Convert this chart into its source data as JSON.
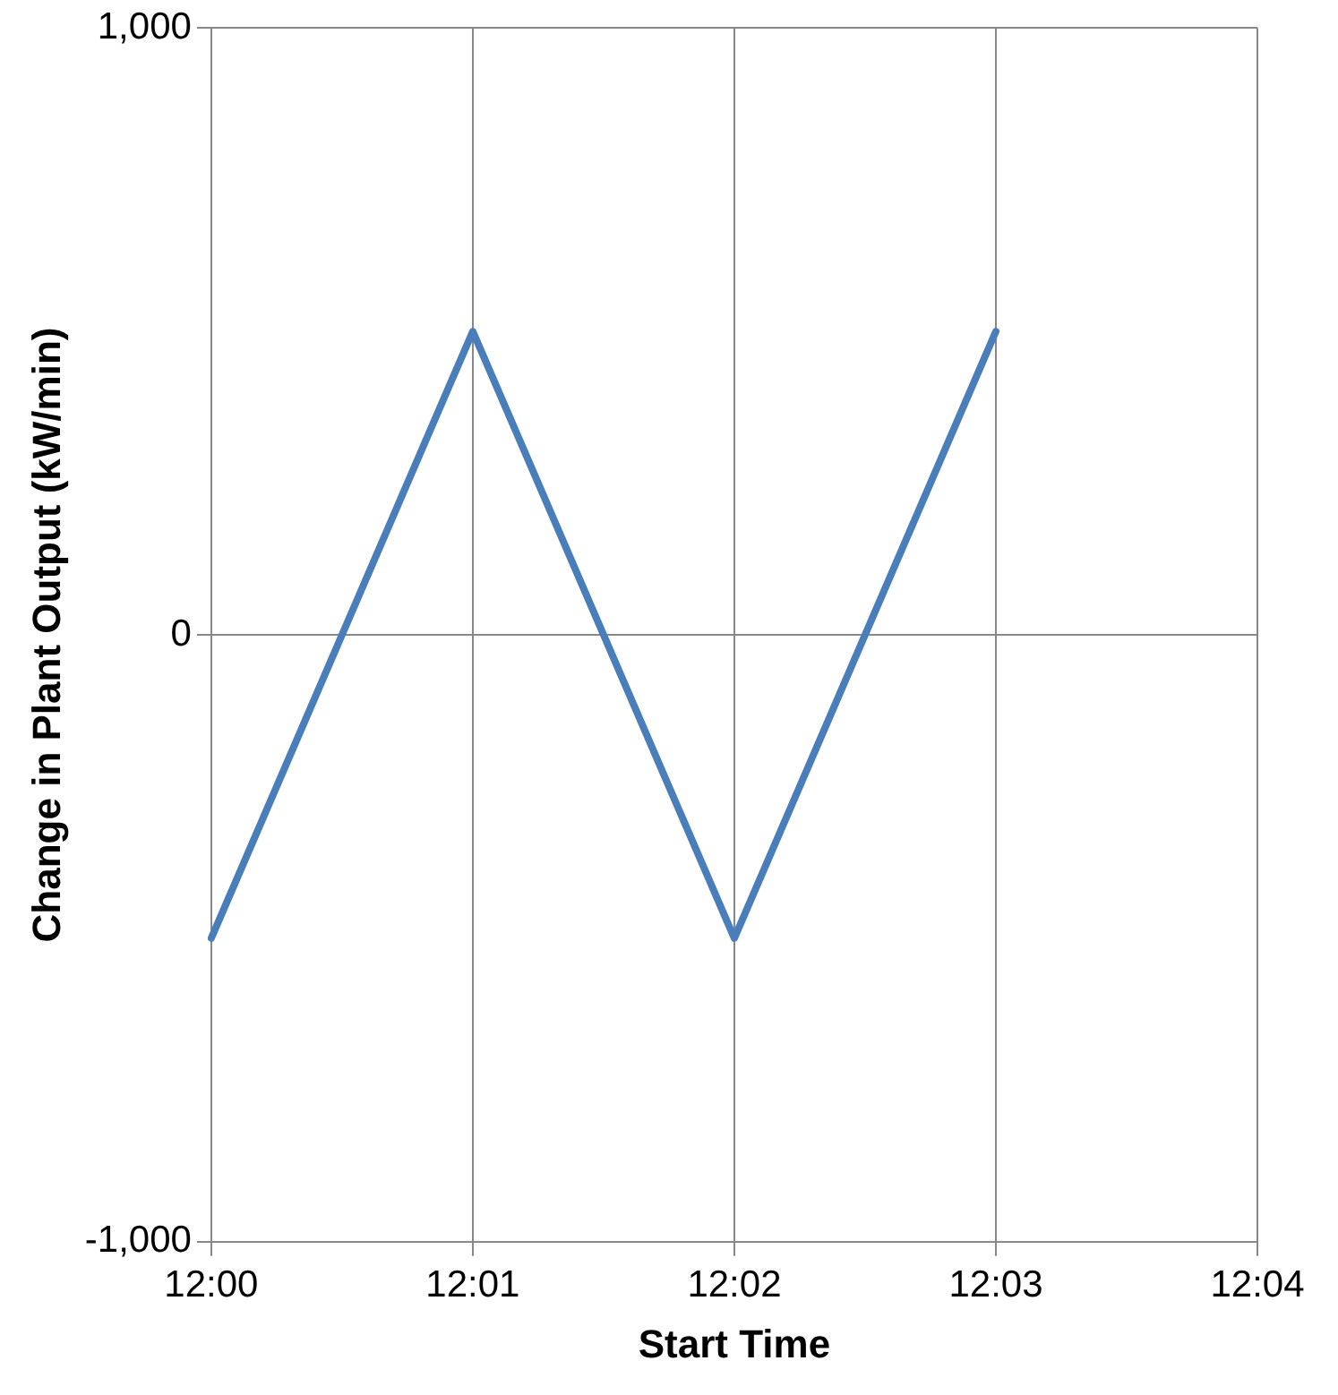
{
  "chart_data": {
    "type": "line",
    "xlabel": "Start Time",
    "ylabel": "Change in Plant Output (kW/min)",
    "categories": [
      "12:00",
      "12:01",
      "12:02",
      "12:03",
      "12:04"
    ],
    "series": [
      {
        "color": "#4a7ebb",
        "values": [
          -500,
          500,
          -500,
          500,
          null
        ]
      }
    ],
    "ylim": [
      -1000,
      1000
    ],
    "yticks": [
      {
        "value": -1000,
        "label": "-1,000"
      },
      0,
      {
        "value": 1000,
        "label": "1,000"
      }
    ],
    "grid": true,
    "legend": false,
    "marker": "none",
    "line_style": "solid"
  }
}
